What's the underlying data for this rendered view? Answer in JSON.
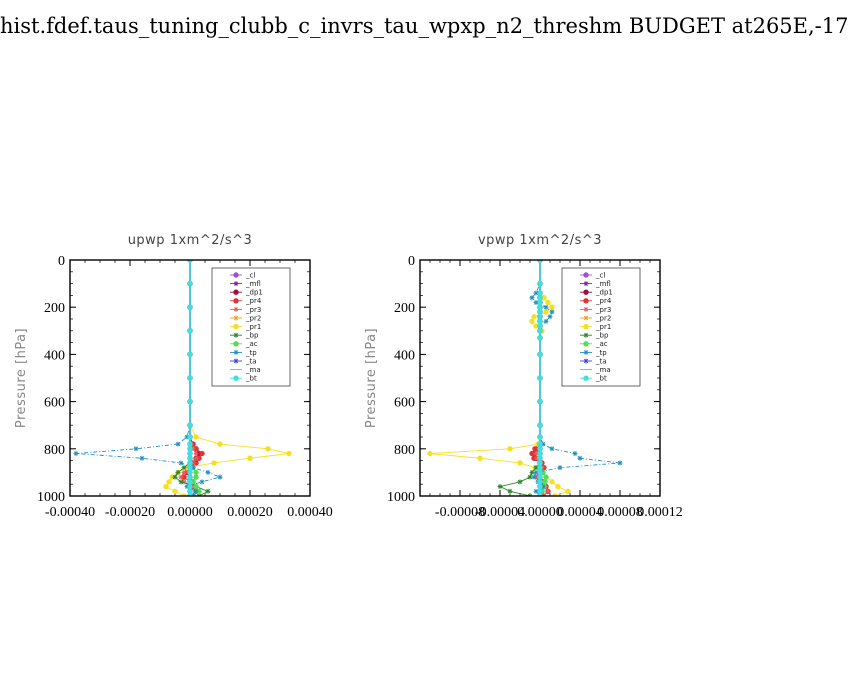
{
  "page_title": "hist.fdef.taus_tuning_clubb_c_invrs_tau_wpxp_n2_threshm  BUDGET at265E,-17",
  "legend_entries": [
    {
      "name": "_cl",
      "color": "#a050d8",
      "marker": "circle"
    },
    {
      "name": "_mfl",
      "color": "#8a1e8a",
      "marker": "star"
    },
    {
      "name": "_dp1",
      "color": "#9a1040",
      "marker": "circle"
    },
    {
      "name": "_pr4",
      "color": "#e03434",
      "marker": "circle"
    },
    {
      "name": "_pr3",
      "color": "#ef5a5a",
      "marker": "star"
    },
    {
      "name": "_pr2",
      "color": "#f0a020",
      "marker": "star"
    },
    {
      "name": "_pr1",
      "color": "#f5e020",
      "marker": "circle"
    },
    {
      "name": "_bp",
      "color": "#2a8a2a",
      "marker": "star"
    },
    {
      "name": "_ac",
      "color": "#50e050",
      "marker": "circle"
    },
    {
      "name": "_tp",
      "color": "#2090c0",
      "marker": "star"
    },
    {
      "name": "_ta",
      "color": "#4040e0",
      "marker": "star"
    },
    {
      "name": "_ma",
      "color": "#40c0f0",
      "marker": "none"
    },
    {
      "name": "_bt",
      "color": "#40e0e0",
      "marker": "circle"
    }
  ],
  "chart_data": [
    {
      "type": "line",
      "title": "upwp   1xm^2/s^3",
      "xlabel": "",
      "ylabel": "Pressure [hPa]",
      "xlim": [
        -0.0004,
        0.0004
      ],
      "ylim": [
        1000,
        0
      ],
      "y_reversed": true,
      "x_ticks": [
        "-0.00040",
        "-0.00020",
        "0.00000",
        "0.00020",
        "0.00040"
      ],
      "x_tick_values": [
        -0.0004,
        -0.0002,
        0,
        0.0002,
        0.0004
      ],
      "y_ticks": [
        0,
        200,
        400,
        600,
        800,
        1000
      ],
      "y": [
        0,
        100,
        200,
        300,
        400,
        500,
        600,
        700,
        750,
        780,
        800,
        820,
        840,
        860,
        880,
        900,
        920,
        940,
        960,
        980,
        1000
      ],
      "series": [
        {
          "name": "_cl",
          "values": [
            0,
            0,
            0,
            0,
            0,
            0,
            0,
            0,
            0,
            0,
            0,
            0,
            0,
            0,
            0,
            0,
            0,
            0,
            0,
            0,
            0
          ]
        },
        {
          "name": "_mfl",
          "values": [
            0,
            0,
            0,
            0,
            0,
            0,
            0,
            0,
            0,
            0,
            0,
            0,
            0,
            0,
            0,
            0,
            0,
            0,
            0,
            0,
            0
          ]
        },
        {
          "name": "_dp1",
          "values": [
            0,
            0,
            0,
            0,
            0,
            0,
            0,
            0,
            0,
            1e-05,
            2e-05,
            3e-05,
            2e-05,
            1e-05,
            0,
            -1e-05,
            0,
            1e-05,
            0,
            0,
            0
          ]
        },
        {
          "name": "_pr4",
          "values": [
            0,
            0,
            0,
            0,
            0,
            0,
            0,
            0,
            0,
            1e-05,
            2e-05,
            4e-05,
            3e-05,
            2e-05,
            0,
            -1e-05,
            -2e-05,
            0,
            1e-05,
            2e-05,
            0
          ]
        },
        {
          "name": "_pr3",
          "values": [
            0,
            0,
            0,
            0,
            0,
            0,
            0,
            0,
            0,
            0,
            1e-05,
            2e-05,
            2e-05,
            1e-05,
            0,
            -2e-05,
            -3e-05,
            -2e-05,
            1e-05,
            3e-05,
            1e-05
          ]
        },
        {
          "name": "_pr2",
          "values": [
            0,
            0,
            0,
            0,
            0,
            0,
            0,
            0,
            0,
            0,
            0,
            0,
            0,
            0,
            0,
            0,
            0,
            0,
            0,
            0,
            0
          ]
        },
        {
          "name": "_pr1",
          "values": [
            0,
            0,
            0,
            0,
            0,
            0,
            0,
            0,
            2e-05,
            0.0001,
            0.00026,
            0.00033,
            0.0002,
            8e-05,
            -1e-05,
            -4e-05,
            -6e-05,
            -7e-05,
            -8e-05,
            -5e-05,
            -2e-05
          ]
        },
        {
          "name": "_bp",
          "values": [
            0,
            0,
            0,
            0,
            0,
            0,
            0,
            0,
            0,
            0,
            0,
            0,
            0,
            0,
            -2e-05,
            -4e-05,
            -5e-05,
            -3e-05,
            2e-05,
            6e-05,
            3e-05
          ]
        },
        {
          "name": "_ac",
          "values": [
            0,
            0,
            0,
            0,
            0,
            0,
            0,
            0,
            0,
            0,
            0,
            0,
            0,
            0,
            1e-05,
            2e-05,
            2e-05,
            1e-05,
            2e-05,
            3e-05,
            1e-05
          ]
        },
        {
          "name": "_tp",
          "values": [
            0,
            0,
            0,
            0,
            0,
            0,
            0,
            0,
            -1e-05,
            -4e-05,
            -0.00018,
            -0.00038,
            -0.00016,
            -3e-05,
            1e-05,
            6e-05,
            0.0001,
            4e-05,
            -1e-05,
            2e-05,
            1e-05
          ]
        },
        {
          "name": "_ta",
          "values": [
            0,
            0,
            0,
            0,
            0,
            0,
            0,
            0,
            0,
            0,
            0,
            0,
            0,
            0,
            0,
            0,
            0,
            0,
            0,
            0,
            0
          ]
        },
        {
          "name": "_ma",
          "values": [
            0,
            0,
            0,
            0,
            0,
            0,
            0,
            0,
            0,
            0,
            0,
            0,
            0,
            0,
            0,
            0,
            0,
            0,
            0,
            0,
            0
          ]
        },
        {
          "name": "_bt",
          "values": [
            0,
            0,
            0,
            0,
            0,
            0,
            0,
            0,
            0,
            0,
            0,
            0,
            0,
            0,
            0,
            0,
            0,
            0,
            0,
            0,
            0
          ]
        }
      ]
    },
    {
      "type": "line",
      "title": "vpwp   1xm^2/s^3",
      "xlabel": "",
      "ylabel": "Pressure [hPa]",
      "xlim": [
        -0.00012,
        0.00012
      ],
      "ylim": [
        1000,
        0
      ],
      "y_reversed": true,
      "x_ticks": [
        "-0.00008",
        "-0.00004",
        "0.00000",
        "0.00004",
        "0.00008",
        "0.00012"
      ],
      "x_tick_values": [
        -8e-05,
        -4e-05,
        0,
        4e-05,
        8e-05,
        0.00012
      ],
      "y_ticks": [
        0,
        200,
        400,
        600,
        800,
        1000
      ],
      "y": [
        0,
        100,
        140,
        160,
        180,
        200,
        220,
        240,
        260,
        280,
        300,
        330,
        400,
        500,
        600,
        700,
        750,
        780,
        800,
        820,
        840,
        860,
        880,
        900,
        920,
        940,
        960,
        980,
        1000
      ],
      "series": [
        {
          "name": "_cl",
          "values": [
            0,
            0,
            0,
            0,
            0,
            0,
            0,
            0,
            0,
            0,
            0,
            0,
            0,
            0,
            0,
            0,
            0,
            0,
            0,
            0,
            0,
            0,
            0,
            0,
            0,
            0,
            0,
            0,
            0
          ]
        },
        {
          "name": "_mfl",
          "values": [
            0,
            0,
            0,
            0,
            0,
            0,
            0,
            0,
            0,
            0,
            0,
            0,
            0,
            0,
            0,
            0,
            0,
            0,
            0,
            0,
            0,
            0,
            0,
            0,
            0,
            0,
            0,
            0,
            0
          ]
        },
        {
          "name": "_dp1",
          "values": [
            0,
            0,
            0,
            0,
            0,
            0,
            0,
            0,
            0,
            0,
            0,
            0,
            0,
            0,
            0,
            0,
            0,
            0,
            -3e-06,
            -6e-06,
            -4e-06,
            0,
            3e-06,
            2e-06,
            0,
            2e-06,
            4e-06,
            2e-06,
            0
          ]
        },
        {
          "name": "_pr4",
          "values": [
            0,
            0,
            0,
            0,
            0,
            0,
            0,
            0,
            0,
            0,
            0,
            0,
            0,
            0,
            0,
            0,
            0,
            0,
            -5e-06,
            -8e-06,
            -6e-06,
            2e-06,
            4e-06,
            2e-06,
            -2e-06,
            3e-06,
            6e-06,
            8e-06,
            3e-06
          ]
        },
        {
          "name": "_pr3",
          "values": [
            0,
            0,
            0,
            0,
            0,
            0,
            0,
            0,
            0,
            0,
            0,
            0,
            0,
            0,
            0,
            0,
            0,
            0,
            0,
            -4e-06,
            -3e-06,
            0,
            2e-06,
            0,
            -3e-06,
            2e-06,
            5e-06,
            8e-06,
            4e-06
          ]
        },
        {
          "name": "_pr2",
          "values": [
            0,
            0,
            0,
            0,
            0,
            0,
            0,
            0,
            0,
            0,
            0,
            0,
            0,
            0,
            0,
            0,
            0,
            0,
            0,
            0,
            0,
            0,
            0,
            0,
            0,
            0,
            0,
            0,
            0
          ]
        },
        {
          "name": "_pr1",
          "values": [
            0,
            0,
            0,
            4e-06,
            8e-06,
            1.2e-05,
            6e-06,
            -6e-06,
            -8e-06,
            -4e-06,
            2e-06,
            0,
            0,
            0,
            0,
            0,
            0,
            -2e-06,
            -3e-05,
            -0.00011,
            -6e-05,
            -2e-05,
            -5e-06,
            2e-06,
            6e-06,
            1.2e-05,
            1.8e-05,
            2.8e-05,
            1.5e-05
          ]
        },
        {
          "name": "_bp",
          "values": [
            0,
            0,
            0,
            0,
            0,
            0,
            0,
            0,
            0,
            0,
            0,
            0,
            0,
            0,
            0,
            0,
            0,
            0,
            0,
            0,
            0,
            0,
            -4e-06,
            -8e-06,
            -1e-05,
            -2e-05,
            -4e-05,
            -3e-05,
            -1e-05
          ]
        },
        {
          "name": "_ac",
          "values": [
            0,
            0,
            0,
            0,
            0,
            0,
            0,
            0,
            0,
            0,
            0,
            0,
            0,
            0,
            0,
            0,
            0,
            0,
            0,
            0,
            0,
            0,
            0,
            3e-06,
            6e-06,
            5e-06,
            4e-06,
            2e-06,
            0
          ]
        },
        {
          "name": "_tp",
          "values": [
            0,
            0,
            -4e-06,
            -8e-06,
            -4e-06,
            6e-06,
            1.2e-05,
            1e-05,
            6e-06,
            0,
            0,
            0,
            0,
            0,
            0,
            0,
            0,
            3e-06,
            1.2e-05,
            3.5e-05,
            4e-05,
            8e-05,
            2e-05,
            -4e-06,
            -6e-06,
            -2e-06,
            3e-06,
            -4e-06,
            0
          ]
        },
        {
          "name": "_ta",
          "values": [
            0,
            0,
            0,
            0,
            0,
            0,
            0,
            0,
            0,
            0,
            0,
            0,
            0,
            0,
            0,
            0,
            0,
            0,
            0,
            0,
            0,
            0,
            0,
            0,
            0,
            0,
            0,
            0,
            0
          ]
        },
        {
          "name": "_ma",
          "values": [
            0,
            0,
            0,
            0,
            0,
            0,
            0,
            0,
            0,
            0,
            0,
            0,
            0,
            0,
            0,
            0,
            0,
            0,
            0,
            0,
            0,
            0,
            0,
            0,
            0,
            0,
            0,
            0,
            0
          ]
        },
        {
          "name": "_bt",
          "values": [
            0,
            0,
            0,
            0,
            0,
            0,
            0,
            0,
            0,
            0,
            0,
            0,
            0,
            0,
            0,
            0,
            0,
            0,
            0,
            0,
            0,
            0,
            0,
            0,
            0,
            0,
            0,
            0,
            0
          ]
        }
      ]
    }
  ]
}
